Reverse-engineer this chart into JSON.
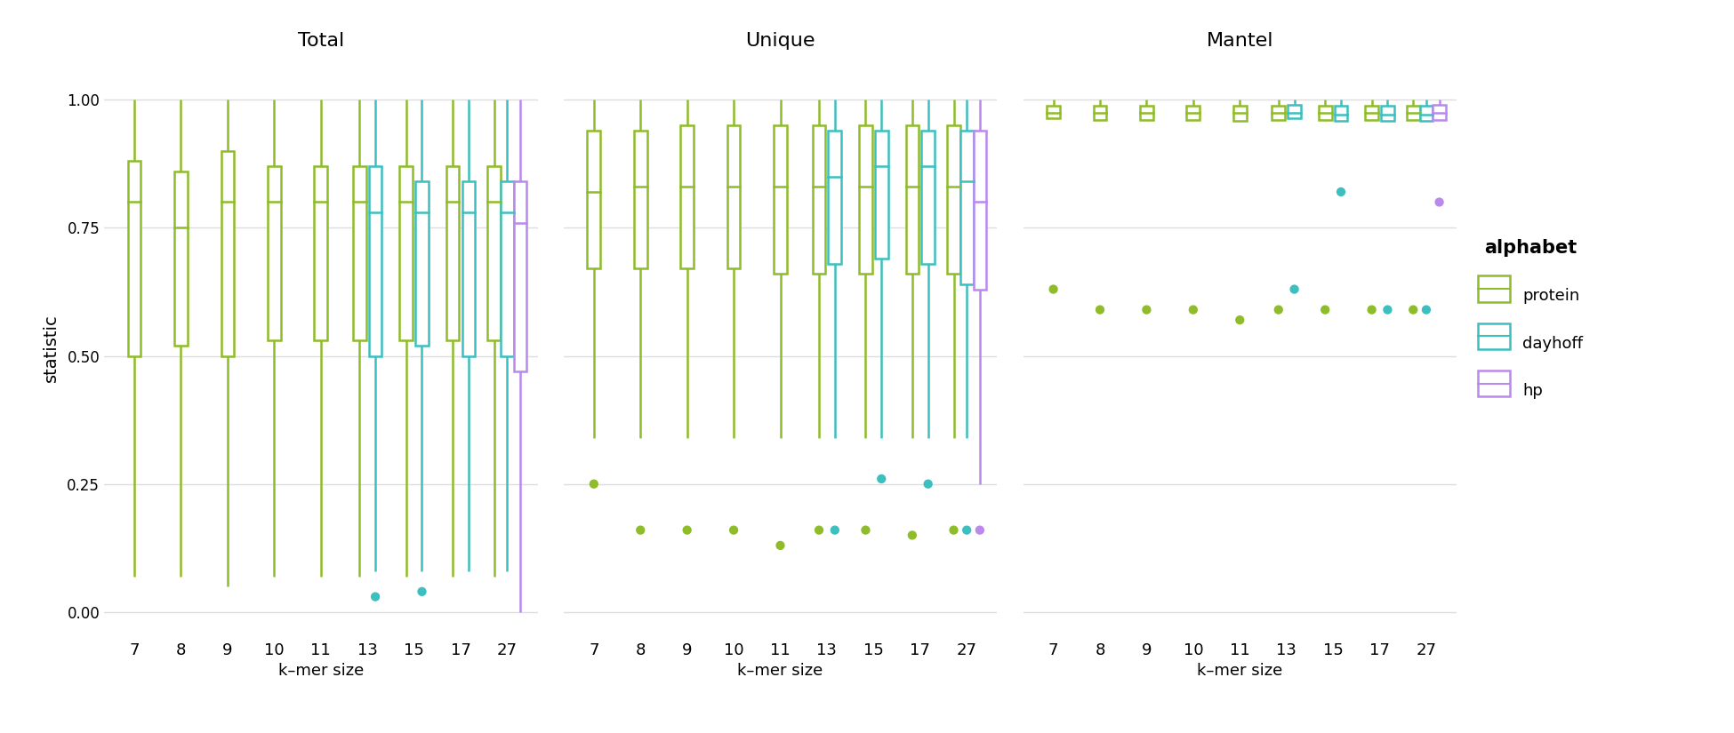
{
  "kmer_sizes": [
    7,
    8,
    9,
    10,
    11,
    13,
    15,
    17,
    27
  ],
  "alphabets": [
    "protein",
    "dayhoff",
    "hp"
  ],
  "colors": {
    "protein": "#8fbc2b",
    "dayhoff": "#3dbfbf",
    "hp": "#bb88ee"
  },
  "panel_titles": [
    "Total",
    "Unique",
    "Mantel"
  ],
  "xlabel": "k–mer size",
  "ylabel": "statistic",
  "ylim": [
    -0.05,
    1.08
  ],
  "yticks": [
    0.0,
    0.25,
    0.5,
    0.75,
    1.0
  ],
  "background_color": "#ffffff",
  "grid_color": "#dddddd",
  "Total": {
    "protein": {
      "7": {
        "q1": 0.5,
        "med": 0.8,
        "q3": 0.88,
        "whislo": 0.07,
        "whishi": 1.0,
        "fliers": []
      },
      "8": {
        "q1": 0.52,
        "med": 0.75,
        "q3": 0.86,
        "whislo": 0.07,
        "whishi": 1.0,
        "fliers": []
      },
      "9": {
        "q1": 0.5,
        "med": 0.8,
        "q3": 0.9,
        "whislo": 0.05,
        "whishi": 1.0,
        "fliers": []
      },
      "10": {
        "q1": 0.53,
        "med": 0.8,
        "q3": 0.87,
        "whislo": 0.07,
        "whishi": 1.0,
        "fliers": []
      },
      "11": {
        "q1": 0.53,
        "med": 0.8,
        "q3": 0.87,
        "whislo": 0.07,
        "whishi": 1.0,
        "fliers": []
      },
      "13": {
        "q1": 0.53,
        "med": 0.8,
        "q3": 0.87,
        "whislo": 0.07,
        "whishi": 1.0,
        "fliers": []
      },
      "15": {
        "q1": 0.53,
        "med": 0.8,
        "q3": 0.87,
        "whislo": 0.07,
        "whishi": 1.0,
        "fliers": []
      },
      "17": {
        "q1": 0.53,
        "med": 0.8,
        "q3": 0.87,
        "whislo": 0.07,
        "whishi": 1.0,
        "fliers": []
      },
      "27": {
        "q1": 0.53,
        "med": 0.8,
        "q3": 0.87,
        "whislo": 0.07,
        "whishi": 1.0,
        "fliers": []
      }
    },
    "dayhoff": {
      "13": {
        "q1": 0.5,
        "med": 0.78,
        "q3": 0.87,
        "whislo": 0.08,
        "whishi": 1.0,
        "fliers": [
          0.03
        ]
      },
      "15": {
        "q1": 0.52,
        "med": 0.78,
        "q3": 0.84,
        "whislo": 0.08,
        "whishi": 1.0,
        "fliers": [
          0.04
        ]
      },
      "17": {
        "q1": 0.5,
        "med": 0.78,
        "q3": 0.84,
        "whislo": 0.08,
        "whishi": 1.0,
        "fliers": []
      },
      "27": {
        "q1": 0.5,
        "med": 0.78,
        "q3": 0.84,
        "whislo": 0.08,
        "whishi": 1.0,
        "fliers": []
      }
    },
    "hp": {
      "27": {
        "q1": 0.47,
        "med": 0.76,
        "q3": 0.84,
        "whislo": 0.0,
        "whishi": 1.0,
        "fliers": []
      }
    }
  },
  "Unique": {
    "protein": {
      "7": {
        "q1": 0.67,
        "med": 0.82,
        "q3": 0.94,
        "whislo": 0.34,
        "whishi": 1.0,
        "fliers": [
          0.25
        ]
      },
      "8": {
        "q1": 0.67,
        "med": 0.83,
        "q3": 0.94,
        "whislo": 0.34,
        "whishi": 1.0,
        "fliers": [
          0.16
        ]
      },
      "9": {
        "q1": 0.67,
        "med": 0.83,
        "q3": 0.95,
        "whislo": 0.34,
        "whishi": 1.0,
        "fliers": [
          0.16
        ]
      },
      "10": {
        "q1": 0.67,
        "med": 0.83,
        "q3": 0.95,
        "whislo": 0.34,
        "whishi": 1.0,
        "fliers": [
          0.16
        ]
      },
      "11": {
        "q1": 0.66,
        "med": 0.83,
        "q3": 0.95,
        "whislo": 0.34,
        "whishi": 1.0,
        "fliers": [
          0.13
        ]
      },
      "13": {
        "q1": 0.66,
        "med": 0.83,
        "q3": 0.95,
        "whislo": 0.34,
        "whishi": 1.0,
        "fliers": [
          0.16
        ]
      },
      "15": {
        "q1": 0.66,
        "med": 0.83,
        "q3": 0.95,
        "whislo": 0.34,
        "whishi": 1.0,
        "fliers": [
          0.16
        ]
      },
      "17": {
        "q1": 0.66,
        "med": 0.83,
        "q3": 0.95,
        "whislo": 0.34,
        "whishi": 1.0,
        "fliers": [
          0.15
        ]
      },
      "27": {
        "q1": 0.66,
        "med": 0.83,
        "q3": 0.95,
        "whislo": 0.34,
        "whishi": 1.0,
        "fliers": [
          0.16
        ]
      }
    },
    "dayhoff": {
      "13": {
        "q1": 0.68,
        "med": 0.85,
        "q3": 0.94,
        "whislo": 0.34,
        "whishi": 1.0,
        "fliers": [
          0.16
        ]
      },
      "15": {
        "q1": 0.69,
        "med": 0.87,
        "q3": 0.94,
        "whislo": 0.34,
        "whishi": 1.0,
        "fliers": [
          0.26
        ]
      },
      "17": {
        "q1": 0.68,
        "med": 0.87,
        "q3": 0.94,
        "whislo": 0.34,
        "whishi": 1.0,
        "fliers": [
          0.25
        ]
      },
      "27": {
        "q1": 0.64,
        "med": 0.84,
        "q3": 0.94,
        "whislo": 0.34,
        "whishi": 1.0,
        "fliers": [
          0.16
        ]
      }
    },
    "hp": {
      "27": {
        "q1": 0.63,
        "med": 0.8,
        "q3": 0.94,
        "whislo": 0.25,
        "whishi": 1.0,
        "fliers": [
          0.16
        ]
      }
    }
  },
  "Mantel": {
    "protein": {
      "7": {
        "q1": 0.963,
        "med": 0.975,
        "q3": 0.988,
        "whislo": 0.963,
        "whishi": 1.0,
        "fliers": [
          0.63
        ]
      },
      "8": {
        "q1": 0.96,
        "med": 0.975,
        "q3": 0.988,
        "whislo": 0.96,
        "whishi": 1.0,
        "fliers": [
          0.59
        ]
      },
      "9": {
        "q1": 0.96,
        "med": 0.975,
        "q3": 0.988,
        "whislo": 0.96,
        "whishi": 1.0,
        "fliers": [
          0.59
        ]
      },
      "10": {
        "q1": 0.96,
        "med": 0.975,
        "q3": 0.988,
        "whislo": 0.96,
        "whishi": 1.0,
        "fliers": [
          0.59
        ]
      },
      "11": {
        "q1": 0.958,
        "med": 0.975,
        "q3": 0.988,
        "whislo": 0.958,
        "whishi": 1.0,
        "fliers": [
          0.57
        ]
      },
      "13": {
        "q1": 0.96,
        "med": 0.975,
        "q3": 0.988,
        "whislo": 0.96,
        "whishi": 1.0,
        "fliers": [
          0.59
        ]
      },
      "15": {
        "q1": 0.96,
        "med": 0.975,
        "q3": 0.988,
        "whislo": 0.96,
        "whishi": 1.0,
        "fliers": [
          0.59
        ]
      },
      "17": {
        "q1": 0.96,
        "med": 0.975,
        "q3": 0.988,
        "whislo": 0.96,
        "whishi": 1.0,
        "fliers": [
          0.59
        ]
      },
      "27": {
        "q1": 0.96,
        "med": 0.975,
        "q3": 0.988,
        "whislo": 0.96,
        "whishi": 1.0,
        "fliers": [
          0.59
        ]
      }
    },
    "dayhoff": {
      "13": {
        "q1": 0.963,
        "med": 0.975,
        "q3": 0.99,
        "whislo": 0.963,
        "whishi": 1.0,
        "fliers": [
          0.63
        ]
      },
      "15": {
        "q1": 0.958,
        "med": 0.97,
        "q3": 0.988,
        "whislo": 0.958,
        "whishi": 1.0,
        "fliers": [
          0.82
        ]
      },
      "17": {
        "q1": 0.958,
        "med": 0.97,
        "q3": 0.988,
        "whislo": 0.958,
        "whishi": 1.0,
        "fliers": [
          0.59
        ]
      },
      "27": {
        "q1": 0.958,
        "med": 0.97,
        "q3": 0.988,
        "whislo": 0.958,
        "whishi": 1.0,
        "fliers": [
          0.59
        ]
      }
    },
    "hp": {
      "27": {
        "q1": 0.96,
        "med": 0.975,
        "q3": 0.99,
        "whislo": 0.96,
        "whishi": 1.0,
        "fliers": [
          0.8
        ]
      }
    }
  },
  "legend_title": "alphabet",
  "legend_labels": [
    "protein",
    "dayhoff",
    "hp"
  ]
}
